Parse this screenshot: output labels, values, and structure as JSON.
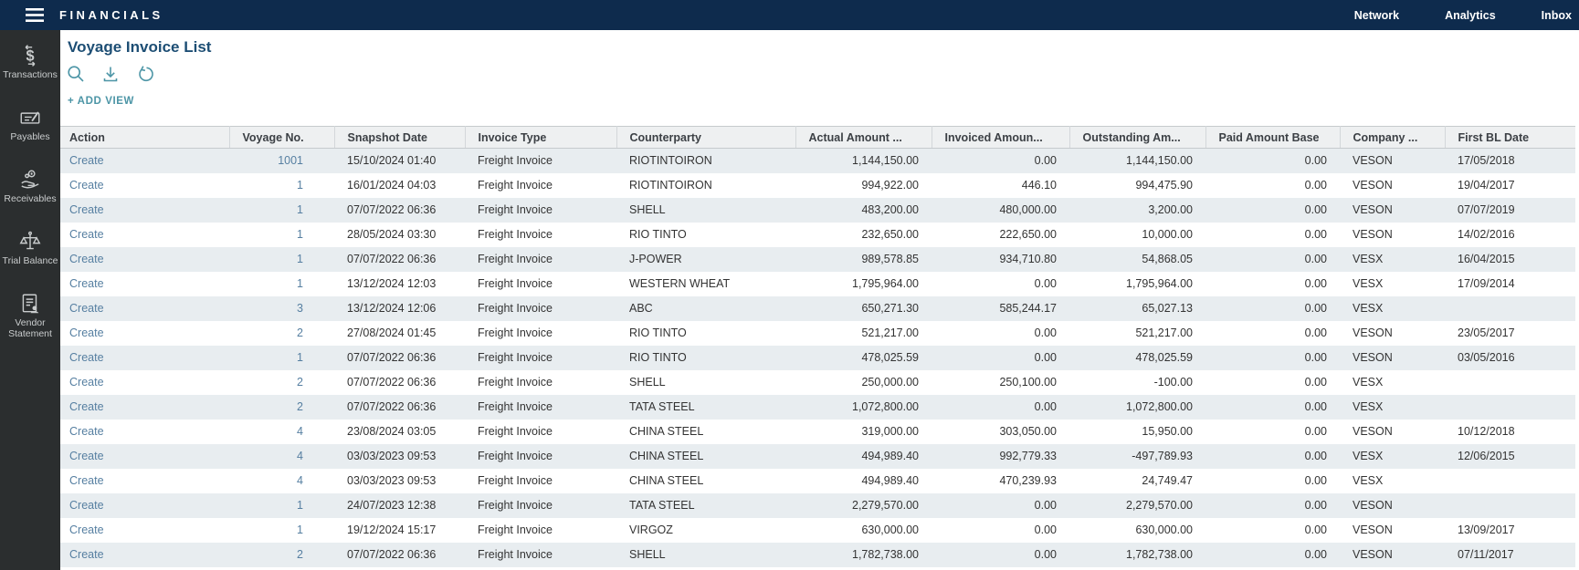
{
  "topbar": {
    "title": "FINANCIALS",
    "nav": [
      {
        "label": "Network"
      },
      {
        "label": "Analytics"
      },
      {
        "label": "Inbox"
      }
    ]
  },
  "sidebar": {
    "items": [
      {
        "label": "Transactions",
        "icon": "dollar-arrows-icon"
      },
      {
        "label": "Payables",
        "icon": "cheque-pen-icon"
      },
      {
        "label": "Receivables",
        "icon": "hand-coin-icon"
      },
      {
        "label": "Trial Balance",
        "icon": "scales-icon"
      },
      {
        "label": "Vendor Statement",
        "icon": "document-person-icon"
      }
    ]
  },
  "page": {
    "title": "Voyage Invoice List",
    "toolbar_icons": [
      "search-icon",
      "download-icon",
      "undo-icon"
    ],
    "add_view_label": "+ ADD VIEW"
  },
  "table": {
    "columns": [
      {
        "label": "Action"
      },
      {
        "label": "Voyage No."
      },
      {
        "label": "Snapshot Date"
      },
      {
        "label": "Invoice Type"
      },
      {
        "label": "Counterparty"
      },
      {
        "label": "Actual Amount ..."
      },
      {
        "label": "Invoiced Amoun..."
      },
      {
        "label": "Outstanding Am..."
      },
      {
        "label": "Paid Amount Base"
      },
      {
        "label": "Company ..."
      },
      {
        "label": "First BL Date"
      }
    ],
    "rows": [
      [
        "Create",
        "1001",
        "15/10/2024 01:40",
        "Freight Invoice",
        "RIOTINTOIRON",
        "1,144,150.00",
        "0.00",
        "1,144,150.00",
        "0.00",
        "VESON",
        "17/05/2018"
      ],
      [
        "Create",
        "1",
        "16/01/2024 04:03",
        "Freight Invoice",
        "RIOTINTOIRON",
        "994,922.00",
        "446.10",
        "994,475.90",
        "0.00",
        "VESON",
        "19/04/2017"
      ],
      [
        "Create",
        "1",
        "07/07/2022 06:36",
        "Freight Invoice",
        "SHELL",
        "483,200.00",
        "480,000.00",
        "3,200.00",
        "0.00",
        "VESON",
        "07/07/2019"
      ],
      [
        "Create",
        "1",
        "28/05/2024 03:30",
        "Freight Invoice",
        "RIO TINTO",
        "232,650.00",
        "222,650.00",
        "10,000.00",
        "0.00",
        "VESON",
        "14/02/2016"
      ],
      [
        "Create",
        "1",
        "07/07/2022 06:36",
        "Freight Invoice",
        "J-POWER",
        "989,578.85",
        "934,710.80",
        "54,868.05",
        "0.00",
        "VESX",
        "16/04/2015"
      ],
      [
        "Create",
        "1",
        "13/12/2024 12:03",
        "Freight Invoice",
        "WESTERN WHEAT",
        "1,795,964.00",
        "0.00",
        "1,795,964.00",
        "0.00",
        "VESX",
        "17/09/2014"
      ],
      [
        "Create",
        "3",
        "13/12/2024 12:06",
        "Freight Invoice",
        "ABC",
        "650,271.30",
        "585,244.17",
        "65,027.13",
        "0.00",
        "VESX",
        ""
      ],
      [
        "Create",
        "2",
        "27/08/2024 01:45",
        "Freight Invoice",
        "RIO TINTO",
        "521,217.00",
        "0.00",
        "521,217.00",
        "0.00",
        "VESON",
        "23/05/2017"
      ],
      [
        "Create",
        "1",
        "07/07/2022 06:36",
        "Freight Invoice",
        "RIO TINTO",
        "478,025.59",
        "0.00",
        "478,025.59",
        "0.00",
        "VESON",
        "03/05/2016"
      ],
      [
        "Create",
        "2",
        "07/07/2022 06:36",
        "Freight Invoice",
        "SHELL",
        "250,000.00",
        "250,100.00",
        "-100.00",
        "0.00",
        "VESX",
        ""
      ],
      [
        "Create",
        "2",
        "07/07/2022 06:36",
        "Freight Invoice",
        "TATA STEEL",
        "1,072,800.00",
        "0.00",
        "1,072,800.00",
        "0.00",
        "VESX",
        ""
      ],
      [
        "Create",
        "4",
        "23/08/2024 03:05",
        "Freight Invoice",
        "CHINA STEEL",
        "319,000.00",
        "303,050.00",
        "15,950.00",
        "0.00",
        "VESON",
        "10/12/2018"
      ],
      [
        "Create",
        "4",
        "03/03/2023 09:53",
        "Freight Invoice",
        "CHINA STEEL",
        "494,989.40",
        "992,779.33",
        "-497,789.93",
        "0.00",
        "VESX",
        "12/06/2015"
      ],
      [
        "Create",
        "4",
        "03/03/2023 09:53",
        "Freight Invoice",
        "CHINA STEEL",
        "494,989.40",
        "470,239.93",
        "24,749.47",
        "0.00",
        "VESX",
        ""
      ],
      [
        "Create",
        "1",
        "24/07/2023 12:38",
        "Freight Invoice",
        "TATA STEEL",
        "2,279,570.00",
        "0.00",
        "2,279,570.00",
        "0.00",
        "VESON",
        ""
      ],
      [
        "Create",
        "1",
        "19/12/2024 15:17",
        "Freight Invoice",
        "VIRGOZ",
        "630,000.00",
        "0.00",
        "630,000.00",
        "0.00",
        "VESON",
        "13/09/2017"
      ],
      [
        "Create",
        "2",
        "07/07/2022 06:36",
        "Freight Invoice",
        "SHELL",
        "1,782,738.00",
        "0.00",
        "1,782,738.00",
        "0.00",
        "VESON",
        "07/11/2017"
      ]
    ],
    "numeric_columns": [
      1,
      5,
      6,
      7,
      8
    ],
    "link_columns": [
      0,
      1
    ]
  },
  "colors": {
    "topbar_bg": "#0e2b4d",
    "sidebar_bg": "#2b2e2f",
    "accent_teal": "#4c95a6",
    "heading_blue": "#1d4e74",
    "link_blue": "#567fa1",
    "header_bg": "#eef0f1",
    "row_stripe": "#e8edf0"
  }
}
